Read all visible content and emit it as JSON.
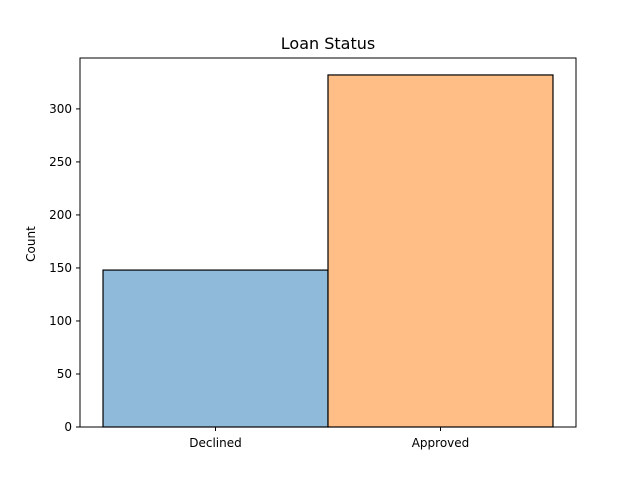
{
  "chart_data": {
    "type": "bar",
    "title": "Loan Status",
    "xlabel": "",
    "ylabel": "Count",
    "categories": [
      "Declined",
      "Approved"
    ],
    "values": [
      148,
      332
    ],
    "ylim": [
      0,
      348
    ],
    "yticks": [
      0,
      50,
      100,
      150,
      200,
      250,
      300
    ],
    "grid": false,
    "colors": [
      "#8fbad9",
      "#ffbe86"
    ],
    "edge_color": "#000000"
  }
}
